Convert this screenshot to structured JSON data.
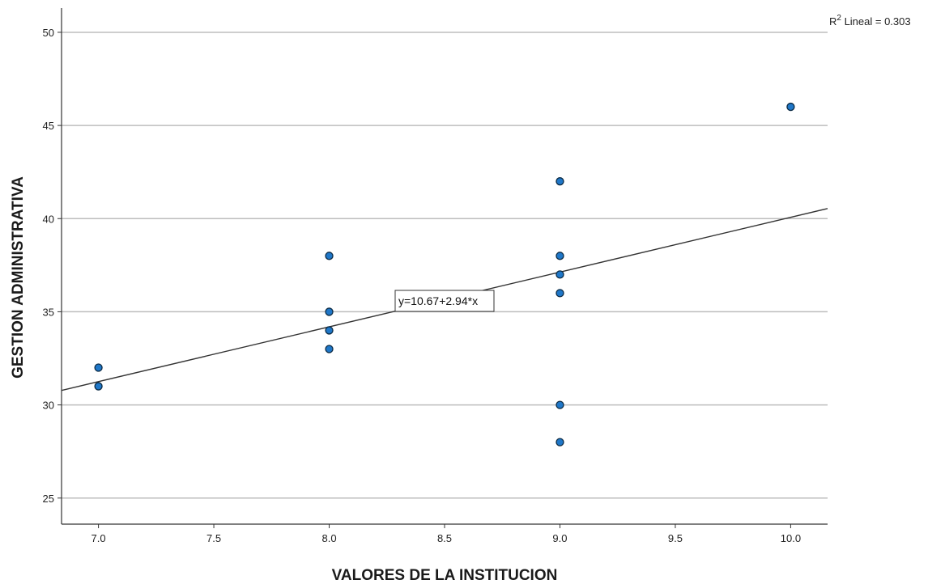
{
  "chart_data": {
    "type": "scatter",
    "title": "",
    "xlabel": "VALORES DE LA  INSTITUCION",
    "ylabel": "GESTION ADMINISTRATIVA",
    "xlim": [
      6.84,
      10.16
    ],
    "ylim": [
      23.6,
      51.3
    ],
    "x_ticks": [
      "7.0",
      "7.5",
      "8.0",
      "8.5",
      "9.0",
      "9.5",
      "10.0"
    ],
    "y_ticks": [
      "25",
      "30",
      "35",
      "40",
      "45",
      "50"
    ],
    "grid": "horizontal",
    "points": [
      {
        "x": 7,
        "y": 32
      },
      {
        "x": 7,
        "y": 31
      },
      {
        "x": 8,
        "y": 38
      },
      {
        "x": 8,
        "y": 35
      },
      {
        "x": 8,
        "y": 34
      },
      {
        "x": 8,
        "y": 33
      },
      {
        "x": 9,
        "y": 42
      },
      {
        "x": 9,
        "y": 38
      },
      {
        "x": 9,
        "y": 37
      },
      {
        "x": 9,
        "y": 36
      },
      {
        "x": 9,
        "y": 30
      },
      {
        "x": 9,
        "y": 28
      },
      {
        "x": 10,
        "y": 46
      }
    ],
    "fit_line": {
      "intercept": 10.67,
      "slope": 2.94
    },
    "fit_label": "y=10.67+2.94*x",
    "r2_prefix": "R",
    "r2_sup": "2",
    "r2_text": " Lineal = 0.303",
    "colors": {
      "point_fill": "#1f77c8",
      "point_stroke": "#0b2a44",
      "grid": "#bdbdbd",
      "axis": "#333333",
      "line": "#333333"
    }
  }
}
